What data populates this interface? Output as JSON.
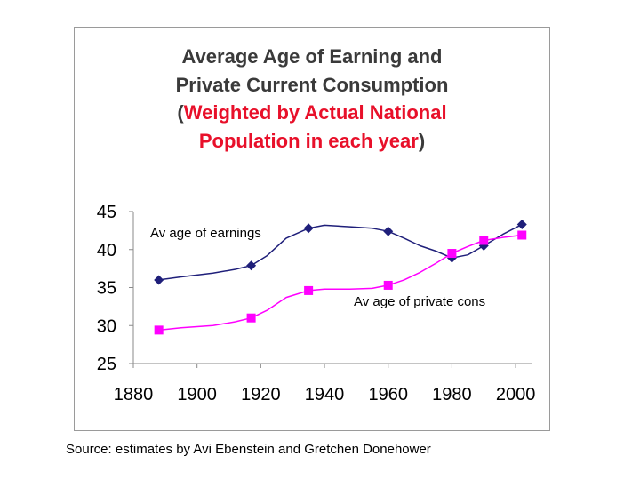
{
  "chart_data": {
    "type": "line",
    "title_line1": "Average Age of Earning and",
    "title_line2": "Private Current Consumption",
    "title_paren_open": "(",
    "title_highlight_line3": "Weighted by Actual National",
    "title_highlight_line4": "Population in each year",
    "title_paren_close": ")",
    "highlight_color": "#e8102a",
    "xlabel": "",
    "ylabel": "",
    "xlim": [
      1880,
      2005
    ],
    "ylim": [
      25,
      45
    ],
    "x_ticks": [
      1880,
      1900,
      1920,
      1940,
      1960,
      1980,
      2000
    ],
    "y_ticks": [
      25,
      30,
      35,
      40,
      45
    ],
    "grid": false,
    "series": [
      {
        "name": "Av age of earnings",
        "color": "#1f1f7a",
        "marker": "diamond",
        "x": [
          1888,
          1917,
          1935,
          1960,
          1980,
          1990,
          2002
        ],
        "y": [
          36.0,
          37.9,
          42.8,
          42.4,
          38.9,
          40.5,
          43.3
        ],
        "curve_x": [
          1888,
          1895,
          1905,
          1912,
          1917,
          1922,
          1928,
          1935,
          1940,
          1948,
          1955,
          1960,
          1965,
          1970,
          1975,
          1980,
          1985,
          1990,
          1996,
          2002
        ],
        "curve_y": [
          36.0,
          36.4,
          36.9,
          37.4,
          37.9,
          39.2,
          41.5,
          42.8,
          43.2,
          43.0,
          42.8,
          42.4,
          41.5,
          40.5,
          39.8,
          38.9,
          39.3,
          40.5,
          42.0,
          43.3
        ]
      },
      {
        "name": "Av age of private cons",
        "color": "#ff00ff",
        "marker": "square",
        "x": [
          1888,
          1917,
          1935,
          1960,
          1980,
          1990,
          2002
        ],
        "y": [
          29.4,
          31.0,
          34.6,
          35.3,
          39.5,
          41.2,
          41.9
        ],
        "curve_x": [
          1888,
          1895,
          1905,
          1912,
          1917,
          1922,
          1928,
          1935,
          1940,
          1948,
          1955,
          1960,
          1965,
          1970,
          1975,
          1980,
          1985,
          1990,
          1996,
          2002
        ],
        "curve_y": [
          29.4,
          29.7,
          30.0,
          30.5,
          31.0,
          32.0,
          33.7,
          34.6,
          34.8,
          34.8,
          34.9,
          35.3,
          36.0,
          37.0,
          38.2,
          39.5,
          40.4,
          41.2,
          41.6,
          41.9
        ]
      }
    ],
    "annotations": [
      {
        "text": "Av age of earnings",
        "series": 0
      },
      {
        "text": "Av age of private cons",
        "series": 1
      }
    ]
  },
  "source": "Source: estimates by Avi Ebenstein and Gretchen Donehower"
}
